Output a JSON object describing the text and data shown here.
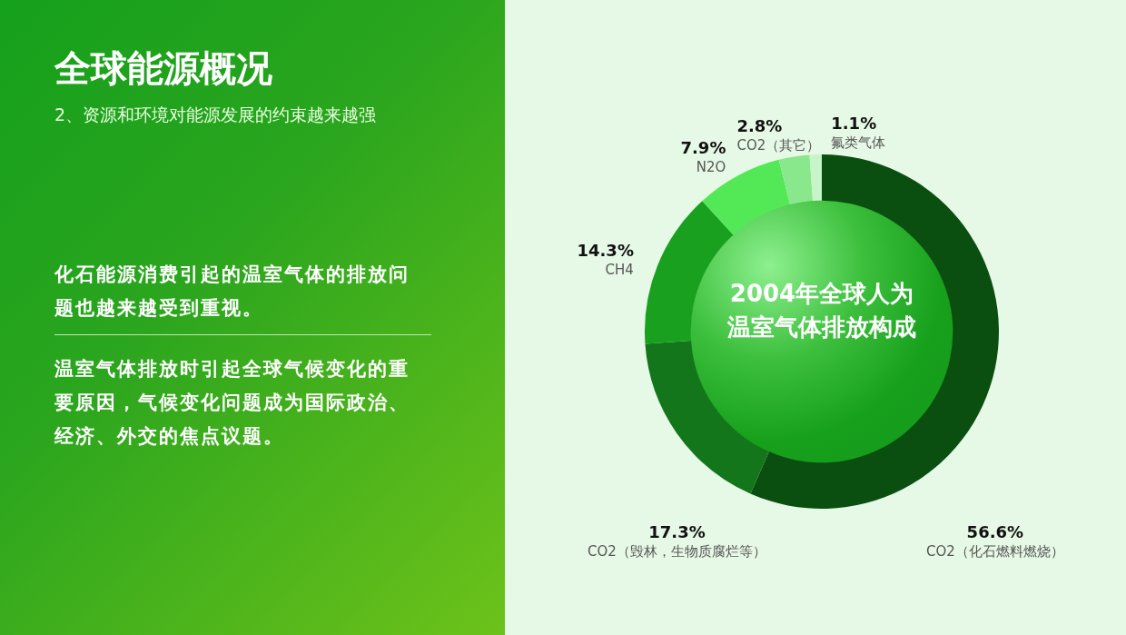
{
  "chart_data": {
    "type": "donut",
    "title": "全球能源概况",
    "subtitle": "2、资源和环境对能源发展的约束越来越强",
    "annotations": [
      "2004年全球人为温室气体排放构成",
      "化石能源消费引起的温室气体的排放问题也越来越受到重视。",
      "温室气体排放时引起全球气候变化的重要原因，气候变化问题成为国际政治、经济、外交的焦点议题。"
    ],
    "categories": [
      "CO2（化石燃料燃烧）",
      "CO2（毁林，生物质腐烂等）",
      "CH4",
      "N2O",
      "CO2（其它）",
      "氟类气体"
    ],
    "values": [
      56.6,
      17.3,
      14.3,
      7.9,
      2.8,
      1.1
    ],
    "value_labels": [
      "56.6%",
      "17.3%",
      "14.3%",
      "7.9%",
      "2.8%",
      "1.1%"
    ],
    "colors": [
      "#0b4f10",
      "#13761a",
      "#18a01e",
      "#52e856",
      "#8ae88c",
      "#c8f5c8"
    ]
  }
}
